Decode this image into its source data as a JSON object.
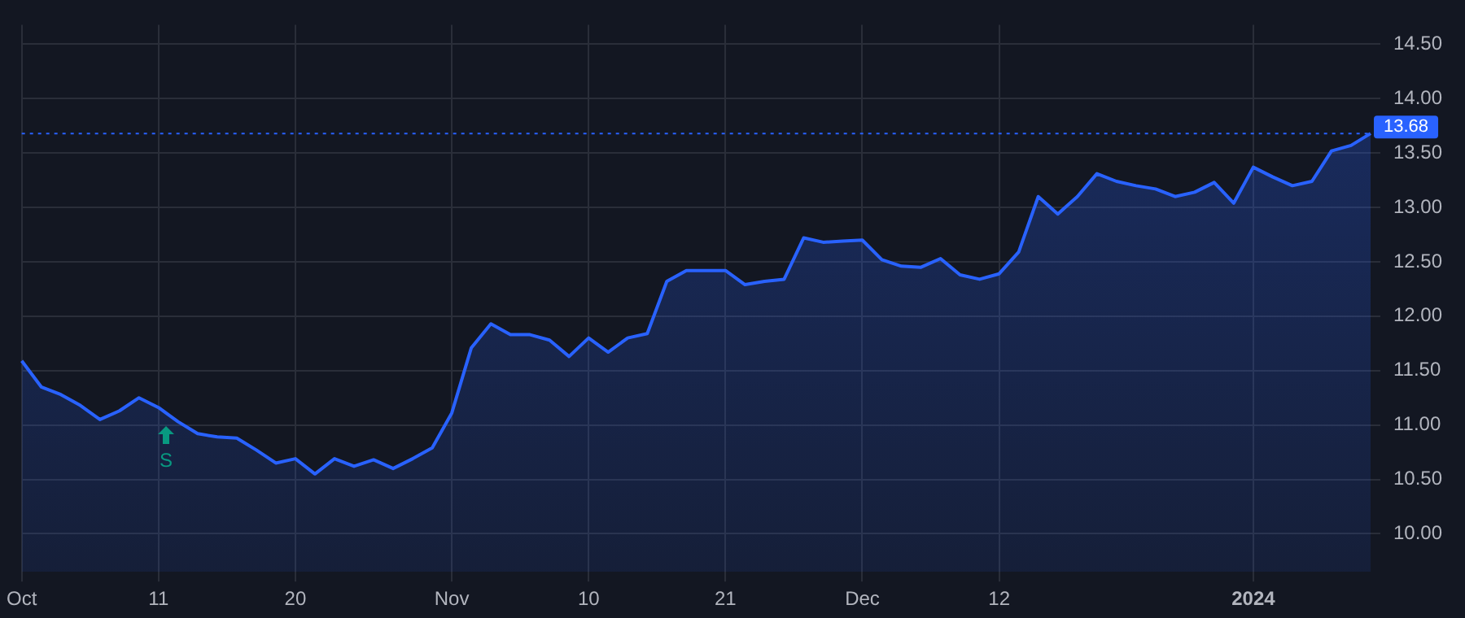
{
  "chart_data": {
    "type": "area",
    "categories": [
      "Oct",
      null,
      null,
      null,
      null,
      null,
      null,
      "11",
      null,
      null,
      null,
      null,
      null,
      null,
      "20",
      null,
      null,
      null,
      null,
      null,
      null,
      null,
      "Nov",
      null,
      null,
      null,
      null,
      null,
      null,
      "10",
      null,
      null,
      null,
      null,
      null,
      null,
      "21",
      null,
      null,
      null,
      null,
      null,
      null,
      "Dec",
      null,
      null,
      null,
      null,
      null,
      null,
      "12",
      null,
      null,
      null,
      null,
      null,
      null,
      null,
      null,
      null,
      null,
      null,
      null,
      "2024",
      null,
      null,
      null,
      null,
      null,
      null
    ],
    "series": [
      {
        "color": "#2962ff",
        "values": [
          11.59,
          11.35,
          11.28,
          11.18,
          11.05,
          11.13,
          11.25,
          11.16,
          11.03,
          10.92,
          10.89,
          10.88,
          10.77,
          10.65,
          10.69,
          10.55,
          10.69,
          10.62,
          10.68,
          10.6,
          10.69,
          10.79,
          11.11,
          11.71,
          11.93,
          11.83,
          11.83,
          11.78,
          11.63,
          11.8,
          11.67,
          11.8,
          11.84,
          12.32,
          12.42,
          12.42,
          12.42,
          12.29,
          12.32,
          12.34,
          12.72,
          12.68,
          12.69,
          12.7,
          12.52,
          12.46,
          12.45,
          12.53,
          12.38,
          12.34,
          12.39,
          12.59,
          13.1,
          12.94,
          13.1,
          13.31,
          13.24,
          13.2,
          13.17,
          13.1,
          13.14,
          13.23,
          13.04,
          13.37,
          13.28,
          13.2,
          13.24,
          13.52,
          13.57,
          13.68
        ]
      }
    ],
    "ylim": [
      9.65,
      14.68
    ],
    "yticks": [
      {
        "value": 10,
        "label": "10.00"
      },
      {
        "value": 10.5,
        "label": "10.50"
      },
      {
        "value": 11,
        "label": "11.00"
      },
      {
        "value": 11.5,
        "label": "11.50"
      },
      {
        "value": 12,
        "label": "12.00"
      },
      {
        "value": 12.5,
        "label": "12.50"
      },
      {
        "value": 13,
        "label": "13.00"
      },
      {
        "value": 13.5,
        "label": "13.50"
      },
      {
        "value": 14,
        "label": "14.00"
      },
      {
        "value": 14.5,
        "label": "14.50"
      }
    ],
    "grid": true,
    "legend": false,
    "marker": "none",
    "line_style": "solid",
    "ref_lines": [
      {
        "axis": "y",
        "value": 13.68,
        "label": "13.68",
        "color": "#2962ff",
        "line_style": "dotted"
      }
    ],
    "annotations": [
      "S"
    ]
  }
}
